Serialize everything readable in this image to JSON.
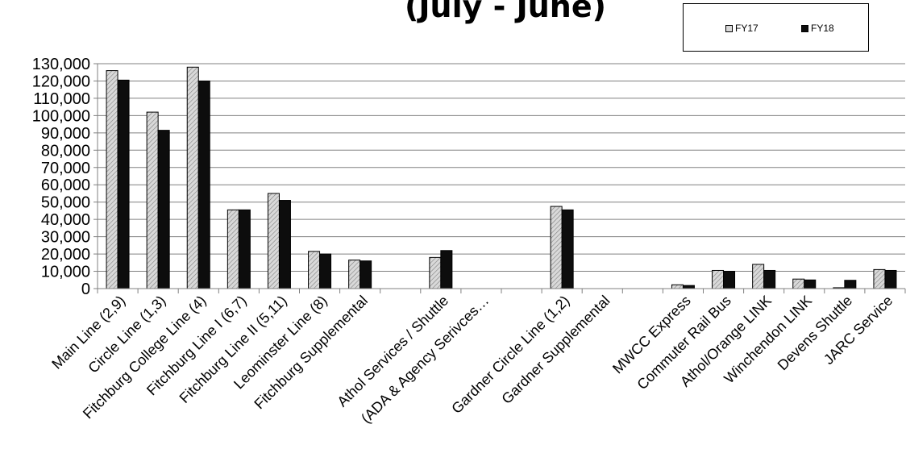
{
  "chart_data": {
    "type": "bar",
    "title": "(July - June)",
    "xlabel": "",
    "ylabel": "",
    "ylim": [
      0,
      130000
    ],
    "yticks": [
      "0",
      "10,000",
      "20,000",
      "30,000",
      "40,000",
      "50,000",
      "60,000",
      "70,000",
      "80,000",
      "90,000",
      "100,000",
      "110,000",
      "120,000",
      "130,000"
    ],
    "grid": true,
    "legend_position": "top-right",
    "categories": [
      "Main Line (2,9)",
      "Circle Line (1,3)",
      "Fitchburg College Line (4)",
      "Fitchburg Line I (6,7)",
      "Fitchburg Line II (5,11)",
      "Leominster Line (8)",
      "Fitchburg Supplemental",
      "",
      "Athol Services / Shuttle",
      "(ADA & Agency Serivces…",
      "",
      "Gardner Circle Line (1,2)",
      "Gardner Supplemental",
      "",
      "MWCC Express",
      "Commuter Rail Bus",
      "Athol/Orange LINK",
      "Winchendon LINK",
      "Devens Shuttle",
      "JARC Service"
    ],
    "series": [
      {
        "name": "FY17",
        "color": "#d9d9d9",
        "pattern": "diagonal-hatch",
        "values": [
          126000,
          102000,
          128000,
          45500,
          55000,
          21500,
          16500,
          null,
          18000,
          null,
          null,
          47500,
          null,
          null,
          2200,
          10500,
          14000,
          5500,
          500,
          11000
        ]
      },
      {
        "name": "FY18",
        "color": "#0d0d0d",
        "pattern": "solid",
        "values": [
          120500,
          91500,
          120000,
          45500,
          51000,
          20000,
          16000,
          null,
          22000,
          null,
          null,
          45500,
          null,
          null,
          1800,
          10000,
          10500,
          5000,
          4800,
          10500
        ]
      }
    ]
  }
}
